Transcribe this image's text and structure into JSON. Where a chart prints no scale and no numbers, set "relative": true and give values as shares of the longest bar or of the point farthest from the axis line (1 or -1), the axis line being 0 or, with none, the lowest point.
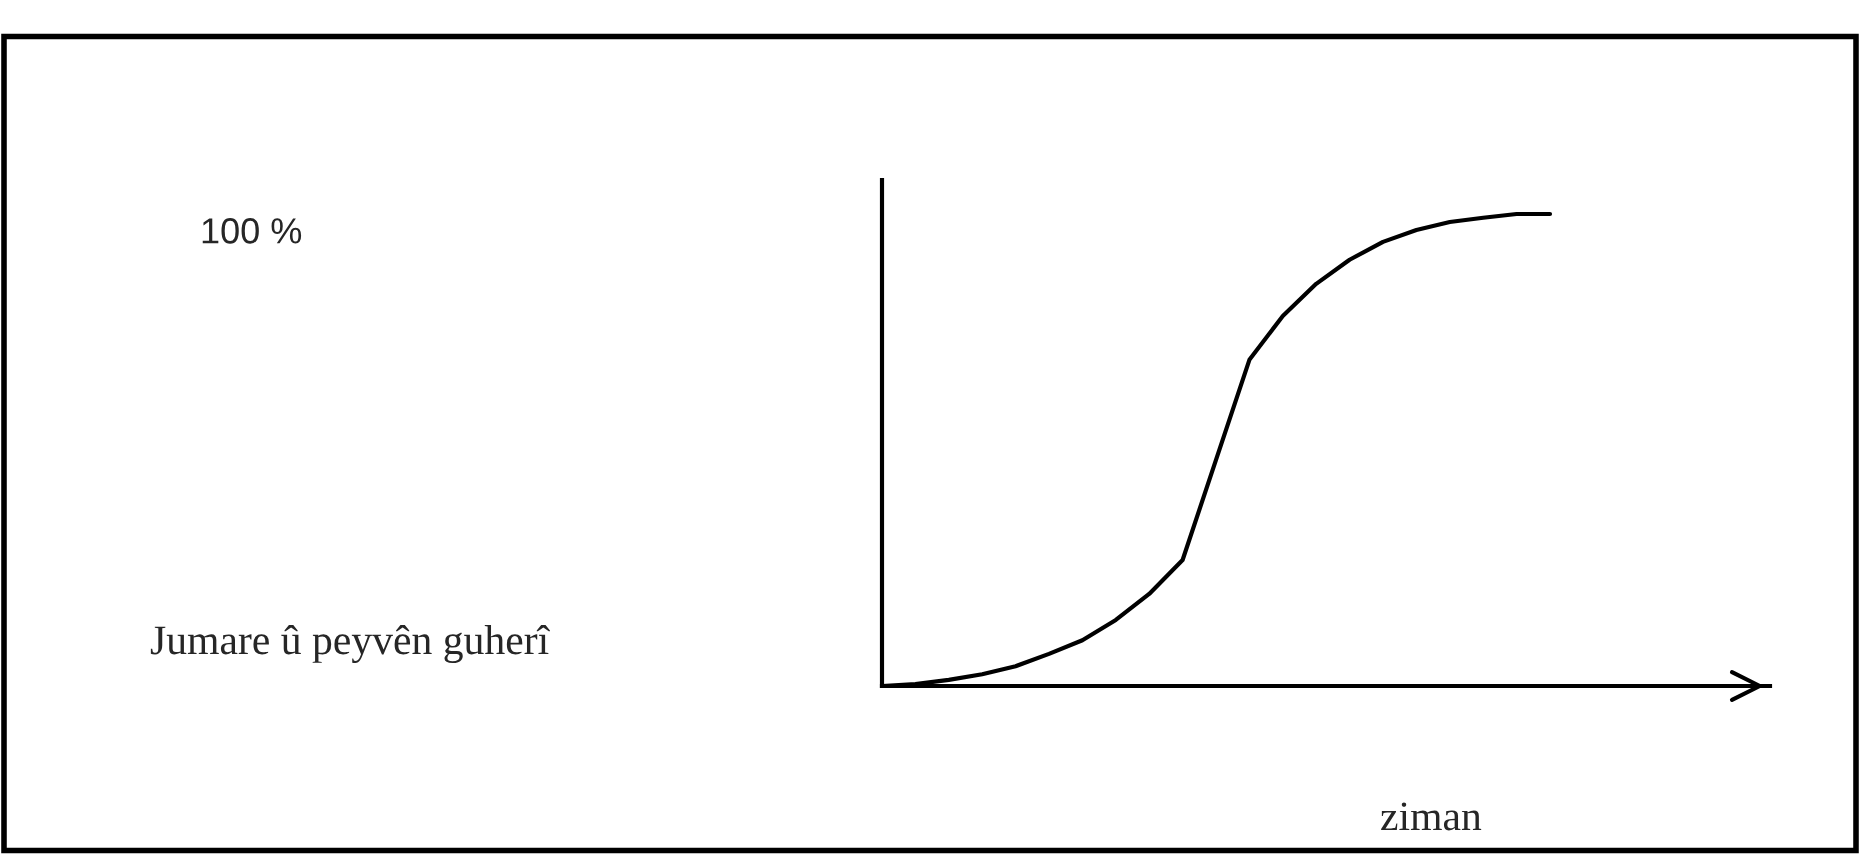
{
  "chart_data": {
    "type": "line",
    "relative": true,
    "xlabel": "ziman",
    "annotations": [
      "100 %",
      "Jumare û peyvên guherî"
    ],
    "categories": [
      null,
      null,
      null,
      null,
      null,
      null,
      null,
      null,
      null,
      null,
      null,
      null,
      null,
      null,
      null,
      null,
      null,
      null,
      null,
      null,
      null
    ],
    "series": [
      {
        "color": "#000000",
        "values": [
          0,
          0.004,
          0.013,
          0.025,
          0.042,
          0.068,
          0.097,
          0.14,
          0.195,
          0.267,
          0.479,
          0.691,
          0.784,
          0.852,
          0.903,
          0.941,
          0.966,
          0.983,
          0.992,
          1,
          1
        ]
      }
    ],
    "grid": false,
    "legend": false,
    "marker": "none",
    "line_style": "solid"
  }
}
